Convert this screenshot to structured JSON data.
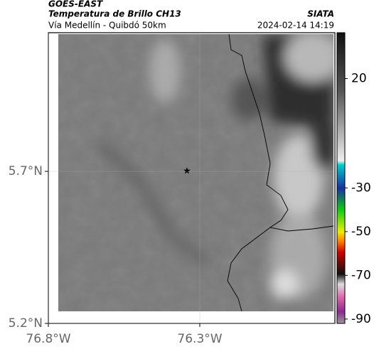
{
  "map": {
    "source": "GOES-EAST",
    "title": "Temperatura de Brillo CH13",
    "subtitle": "Vía Medellín - Quibdó 50km",
    "credit": "SIATA",
    "timestamp": "2024-02-14 14:19",
    "xlim": [
      -76.8,
      -75.854
    ],
    "ylim": [
      5.2,
      6.156
    ],
    "xticks": [
      {
        "value": -76.8,
        "label": "76.8°W"
      },
      {
        "value": -76.3,
        "label": "76.3°W"
      }
    ],
    "yticks": [
      {
        "value": 5.2,
        "label": "5.2°N"
      },
      {
        "value": 5.7,
        "label": "5.7°N"
      }
    ],
    "colorbar": {
      "clim": [
        -92,
        41
      ],
      "ticks": [
        20,
        -30,
        -50,
        -70,
        -90
      ]
    }
  }
}
